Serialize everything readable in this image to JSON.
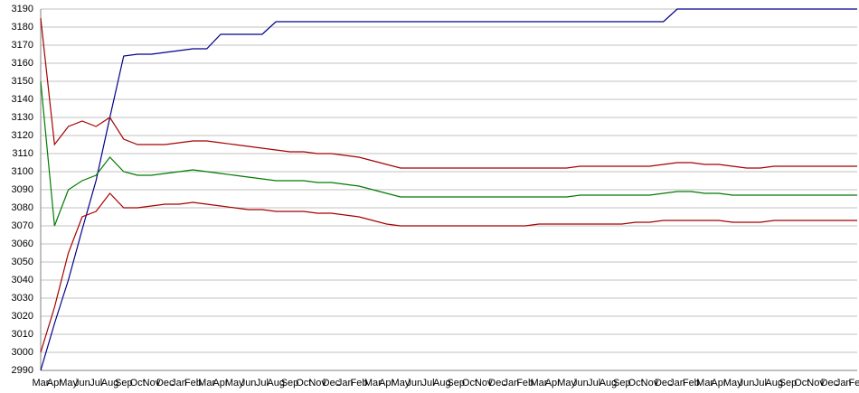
{
  "chart_data": {
    "type": "line",
    "categories": [
      "Mar",
      "Apr",
      "May",
      "Jun",
      "Jul",
      "Aug",
      "Sep",
      "Oct",
      "Nov",
      "Dec",
      "Jan",
      "Feb",
      "Mar",
      "Apr",
      "May",
      "Jun",
      "Jul",
      "Aug",
      "Sep",
      "Oct",
      "Nov",
      "Dec",
      "Jan",
      "Feb",
      "Mar",
      "Apr",
      "May",
      "Jun",
      "Jul",
      "Aug",
      "Sep",
      "Oct",
      "Nov",
      "Dec",
      "Jan",
      "Feb",
      "Mar",
      "Apr",
      "May",
      "Jun",
      "Jul",
      "Aug",
      "Sep",
      "Oct",
      "Nov",
      "Dec",
      "Jan",
      "Feb",
      "Mar",
      "Apr",
      "May",
      "Jun",
      "Jul",
      "Aug",
      "Sep",
      "Oct",
      "Nov",
      "Dec",
      "Jan",
      "Feb"
    ],
    "series": [
      {
        "color": "#00008b",
        "values": [
          2990,
          3016,
          3040,
          3068,
          3095,
          3130,
          3164,
          3165,
          3165,
          3166,
          3167,
          3168,
          3168,
          3176,
          3176,
          3176,
          3176,
          3183,
          3183,
          3183,
          3183,
          3183,
          3183,
          3183,
          3183,
          3183,
          3183,
          3183,
          3183,
          3183,
          3183,
          3183,
          3183,
          3183,
          3183,
          3183,
          3183,
          3183,
          3183,
          3183,
          3183,
          3183,
          3183,
          3183,
          3183,
          3183,
          3190,
          3190,
          3190,
          3190,
          3190,
          3190,
          3190,
          3190,
          3190,
          3190,
          3190,
          3190,
          3190,
          3190
        ]
      },
      {
        "color": "#a50000",
        "values": [
          3185,
          3115,
          3125,
          3128,
          3125,
          3130,
          3118,
          3115,
          3115,
          3115,
          3116,
          3117,
          3117,
          3116,
          3115,
          3114,
          3113,
          3112,
          3111,
          3111,
          3110,
          3110,
          3109,
          3108,
          3106,
          3104,
          3102,
          3102,
          3102,
          3102,
          3102,
          3102,
          3102,
          3102,
          3102,
          3102,
          3102,
          3102,
          3102,
          3103,
          3103,
          3103,
          3103,
          3103,
          3103,
          3104,
          3105,
          3105,
          3104,
          3104,
          3103,
          3102,
          3102,
          3103,
          3103,
          3103,
          3103,
          3103,
          3103,
          3103
        ]
      },
      {
        "color": "#007a00",
        "values": [
          3150,
          3070,
          3090,
          3095,
          3098,
          3108,
          3100,
          3098,
          3098,
          3099,
          3100,
          3101,
          3100,
          3099,
          3098,
          3097,
          3096,
          3095,
          3095,
          3095,
          3094,
          3094,
          3093,
          3092,
          3090,
          3088,
          3086,
          3086,
          3086,
          3086,
          3086,
          3086,
          3086,
          3086,
          3086,
          3086,
          3086,
          3086,
          3086,
          3087,
          3087,
          3087,
          3087,
          3087,
          3087,
          3088,
          3089,
          3089,
          3088,
          3088,
          3087,
          3087,
          3087,
          3087,
          3087,
          3087,
          3087,
          3087,
          3087,
          3087
        ]
      },
      {
        "color": "#a50000",
        "values": [
          3000,
          3025,
          3055,
          3075,
          3078,
          3088,
          3080,
          3080,
          3081,
          3082,
          3082,
          3083,
          3082,
          3081,
          3080,
          3079,
          3079,
          3078,
          3078,
          3078,
          3077,
          3077,
          3076,
          3075,
          3073,
          3071,
          3070,
          3070,
          3070,
          3070,
          3070,
          3070,
          3070,
          3070,
          3070,
          3070,
          3071,
          3071,
          3071,
          3071,
          3071,
          3071,
          3071,
          3072,
          3072,
          3073,
          3073,
          3073,
          3073,
          3073,
          3072,
          3072,
          3072,
          3073,
          3073,
          3073,
          3073,
          3073,
          3073,
          3073
        ]
      }
    ],
    "ylim": [
      2990,
      3190
    ],
    "yticks": [
      2990,
      3000,
      3010,
      3020,
      3030,
      3040,
      3050,
      3060,
      3070,
      3080,
      3090,
      3100,
      3110,
      3120,
      3130,
      3140,
      3150,
      3160,
      3170,
      3180,
      3190
    ],
    "grid": true
  }
}
